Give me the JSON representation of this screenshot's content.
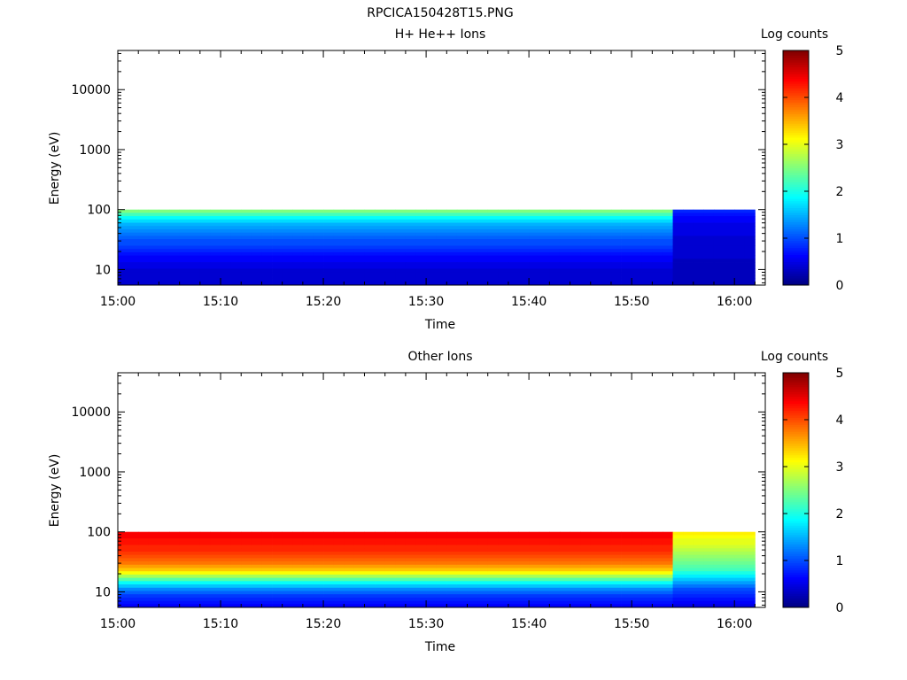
{
  "figure": {
    "title": "RPCICA150428T15.PNG"
  },
  "colors": {
    "axis": "#000000",
    "colormap": [
      "#00007f",
      "#0000ff",
      "#007fff",
      "#00ffff",
      "#7fff7f",
      "#ffff00",
      "#ff7f00",
      "#ff0000",
      "#7f0000"
    ]
  },
  "chart_data": [
    {
      "type": "heatmap",
      "title": "H+ He++ Ions",
      "xlabel": "Time",
      "ylabel": "Energy (eV)",
      "x_tick_labels": [
        "15:00",
        "15:10",
        "15:20",
        "15:30",
        "15:40",
        "15:50",
        "16:00"
      ],
      "xlim": [
        "15:00",
        "16:03"
      ],
      "y_scale": "log",
      "y_tick_labels": [
        "10",
        "100",
        "1000",
        "10000"
      ],
      "ylim": [
        5.5,
        45000
      ],
      "data_energy_range_eV": [
        5.5,
        100
      ],
      "data_time_range": [
        "15:00",
        "16:02"
      ],
      "colorbar": {
        "label": "Log counts",
        "range": [
          0,
          5
        ],
        "tick_labels": [
          "0",
          "1",
          "2",
          "3",
          "4",
          "5"
        ]
      },
      "energy_bins_eV": [
        95,
        85,
        75,
        66,
        58,
        51,
        45,
        40,
        35,
        31,
        27,
        24,
        21,
        18.5,
        16.3,
        14.4,
        12.7,
        11.2,
        9.9,
        8.7,
        7.7,
        6.8,
        6.0
      ],
      "time_bins": [
        "15:00",
        "15:01",
        "15:02",
        "15:03",
        "15:04",
        "15:05",
        "15:06",
        "15:07",
        "15:08",
        "15:09",
        "15:10",
        "15:11",
        "15:12",
        "15:13",
        "15:14",
        "15:15",
        "15:16",
        "15:17",
        "15:18",
        "15:19",
        "15:20",
        "15:21",
        "15:22",
        "15:23",
        "15:24",
        "15:25",
        "15:26",
        "15:27",
        "15:28",
        "15:29",
        "15:30",
        "15:31",
        "15:32",
        "15:33",
        "15:34",
        "15:35",
        "15:36",
        "15:37",
        "15:38",
        "15:39",
        "15:40",
        "15:41",
        "15:42",
        "15:43",
        "15:44",
        "15:45",
        "15:46",
        "15:47",
        "15:48",
        "15:49",
        "15:50",
        "15:51",
        "15:52",
        "15:53",
        "15:54",
        "15:55",
        "15:56",
        "15:57",
        "15:58",
        "15:59",
        "16:00",
        "16:01"
      ],
      "log_counts_profile": [
        {
          "from": "15:00",
          "to": "15:53",
          "values": [
            2.5,
            2.2,
            1.9,
            1.7,
            1.5,
            1.4,
            1.3,
            1.2,
            1.1,
            1.0,
            1.0,
            0.9,
            0.8,
            0.7,
            0.6,
            0.6,
            0.5,
            0.5,
            0.4,
            0.4,
            0.4,
            0.4,
            0.4
          ]
        },
        {
          "from": "15:54",
          "to": "16:02",
          "values": [
            0.8,
            0.7,
            0.6,
            0.6,
            0.5,
            0.5,
            0.5,
            0.5,
            0.4,
            0.4,
            0.4,
            0.4,
            0.4,
            0.4,
            0.4,
            0.3,
            0.3,
            0.3,
            0.3,
            0.3,
            0.3,
            0.3,
            0.3
          ]
        }
      ],
      "grid": false
    },
    {
      "type": "heatmap",
      "title": "Other Ions",
      "xlabel": "Time",
      "ylabel": "Energy (eV)",
      "x_tick_labels": [
        "15:00",
        "15:10",
        "15:20",
        "15:30",
        "15:40",
        "15:50",
        "16:00"
      ],
      "xlim": [
        "15:00",
        "16:03"
      ],
      "y_scale": "log",
      "y_tick_labels": [
        "10",
        "100",
        "1000",
        "10000"
      ],
      "ylim": [
        5.5,
        45000
      ],
      "data_energy_range_eV": [
        5.5,
        100
      ],
      "data_time_range": [
        "15:00",
        "16:02"
      ],
      "colorbar": {
        "label": "Log counts",
        "range": [
          0,
          5
        ],
        "tick_labels": [
          "0",
          "1",
          "2",
          "3",
          "4",
          "5"
        ]
      },
      "energy_bins_eV": [
        95,
        85,
        75,
        66,
        58,
        51,
        45,
        40,
        35,
        31,
        27,
        24,
        21,
        18.5,
        16.3,
        14.4,
        12.7,
        11.2,
        9.9,
        8.7,
        7.7,
        6.8,
        6.0
      ],
      "time_bins": [
        "15:00",
        "15:01",
        "15:02",
        "15:03",
        "15:04",
        "15:05",
        "15:06",
        "15:07",
        "15:08",
        "15:09",
        "15:10",
        "15:11",
        "15:12",
        "15:13",
        "15:14",
        "15:15",
        "15:16",
        "15:17",
        "15:18",
        "15:19",
        "15:20",
        "15:21",
        "15:22",
        "15:23",
        "15:24",
        "15:25",
        "15:26",
        "15:27",
        "15:28",
        "15:29",
        "15:30",
        "15:31",
        "15:32",
        "15:33",
        "15:34",
        "15:35",
        "15:36",
        "15:37",
        "15:38",
        "15:39",
        "15:40",
        "15:41",
        "15:42",
        "15:43",
        "15:44",
        "15:45",
        "15:46",
        "15:47",
        "15:48",
        "15:49",
        "15:50",
        "15:51",
        "15:52",
        "15:53",
        "15:54",
        "15:55",
        "15:56",
        "15:57",
        "15:58",
        "15:59",
        "16:00",
        "16:01"
      ],
      "log_counts_profile": [
        {
          "from": "15:00",
          "to": "15:53",
          "values": [
            4.4,
            4.4,
            4.3,
            4.3,
            4.2,
            4.2,
            4.1,
            4.0,
            3.9,
            3.8,
            3.6,
            3.4,
            3.1,
            2.7,
            2.3,
            1.9,
            1.6,
            1.3,
            1.1,
            0.9,
            0.8,
            0.7,
            0.6
          ]
        },
        {
          "from": "15:54",
          "to": "16:02",
          "values": [
            3.2,
            3.1,
            3.0,
            3.0,
            2.9,
            2.8,
            2.7,
            2.6,
            2.5,
            2.4,
            2.3,
            2.2,
            2.0,
            1.8,
            1.6,
            1.4,
            1.2,
            1.0,
            0.9,
            0.8,
            0.7,
            0.6,
            0.5
          ]
        }
      ],
      "grid": false
    }
  ]
}
